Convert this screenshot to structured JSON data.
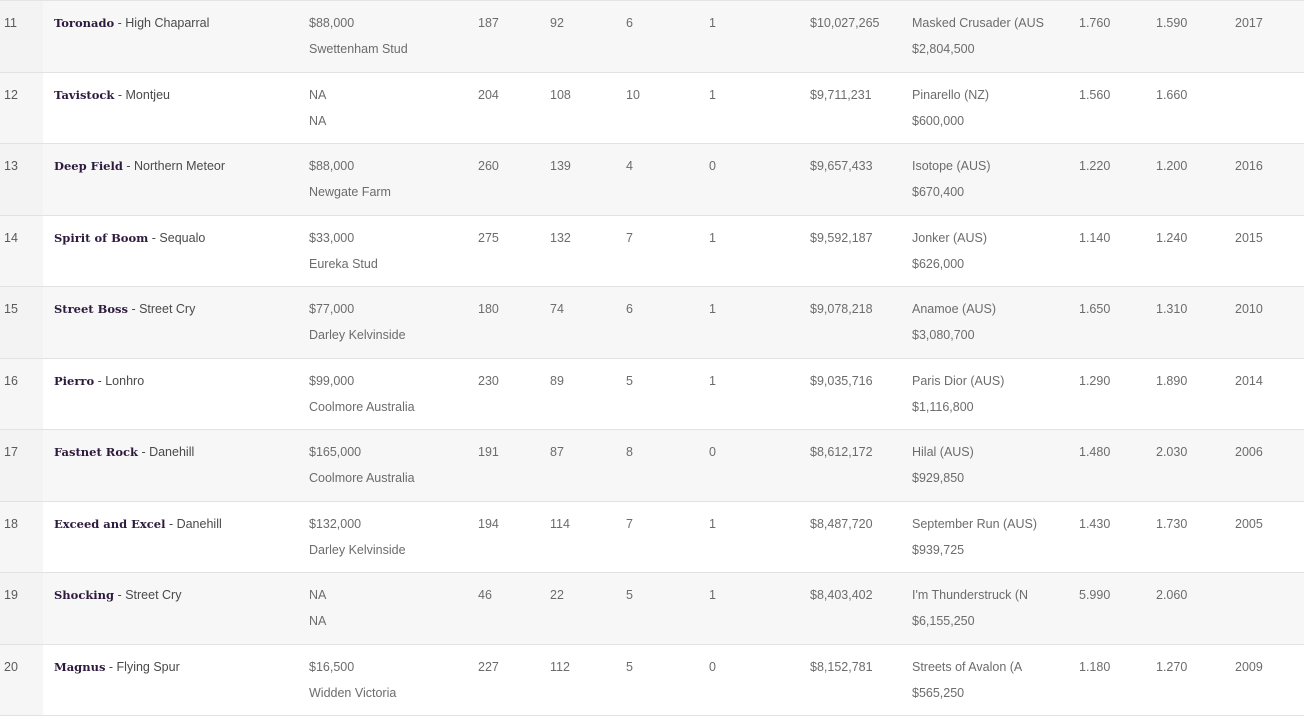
{
  "rows": [
    {
      "rank": "11",
      "sire": "Toronado",
      "sep": " - ",
      "dam_sire": "High Chaparral",
      "fee": "$88,000",
      "stud": "Swettenham Stud",
      "c1": "187",
      "c2": "92",
      "c3": "6",
      "c4": "1",
      "earnings": "$10,027,265",
      "best_horse": "Masked Crusader (AUS",
      "best_prize": "$2,804,500",
      "index1": "1.760",
      "index2": "1.590",
      "year": "2017"
    },
    {
      "rank": "12",
      "sire": "Tavistock",
      "sep": " - ",
      "dam_sire": "Montjeu",
      "fee": "NA",
      "stud": "NA",
      "c1": "204",
      "c2": "108",
      "c3": "10",
      "c4": "1",
      "earnings": "$9,711,231",
      "best_horse": "Pinarello (NZ)",
      "best_prize": "$600,000",
      "index1": "1.560",
      "index2": "1.660",
      "year": ""
    },
    {
      "rank": "13",
      "sire": "Deep Field",
      "sep": " - ",
      "dam_sire": "Northern Meteor",
      "fee": "$88,000",
      "stud": "Newgate Farm",
      "c1": "260",
      "c2": "139",
      "c3": "4",
      "c4": "0",
      "earnings": "$9,657,433",
      "best_horse": "Isotope (AUS)",
      "best_prize": "$670,400",
      "index1": "1.220",
      "index2": "1.200",
      "year": "2016"
    },
    {
      "rank": "14",
      "sire": "Spirit of Boom",
      "sep": " - ",
      "dam_sire": "Sequalo",
      "fee": "$33,000",
      "stud": "Eureka Stud",
      "c1": "275",
      "c2": "132",
      "c3": "7",
      "c4": "1",
      "earnings": "$9,592,187",
      "best_horse": "Jonker (AUS)",
      "best_prize": "$626,000",
      "index1": "1.140",
      "index2": "1.240",
      "year": "2015"
    },
    {
      "rank": "15",
      "sire": "Street Boss",
      "sep": " - ",
      "dam_sire": "Street Cry",
      "fee": "$77,000",
      "stud": "Darley Kelvinside",
      "c1": "180",
      "c2": "74",
      "c3": "6",
      "c4": "1",
      "earnings": "$9,078,218",
      "best_horse": "Anamoe (AUS)",
      "best_prize": "$3,080,700",
      "index1": "1.650",
      "index2": "1.310",
      "year": "2010"
    },
    {
      "rank": "16",
      "sire": "Pierro",
      "sep": " - ",
      "dam_sire": "Lonhro",
      "fee": "$99,000",
      "stud": "Coolmore Australia",
      "c1": "230",
      "c2": "89",
      "c3": "5",
      "c4": "1",
      "earnings": "$9,035,716",
      "best_horse": "Paris Dior (AUS)",
      "best_prize": "$1,116,800",
      "index1": "1.290",
      "index2": "1.890",
      "year": "2014"
    },
    {
      "rank": "17",
      "sire": "Fastnet Rock",
      "sep": " - ",
      "dam_sire": "Danehill",
      "fee": "$165,000",
      "stud": "Coolmore Australia",
      "c1": "191",
      "c2": "87",
      "c3": "8",
      "c4": "0",
      "earnings": "$8,612,172",
      "best_horse": "Hilal (AUS)",
      "best_prize": "$929,850",
      "index1": "1.480",
      "index2": "2.030",
      "year": "2006"
    },
    {
      "rank": "18",
      "sire": "Exceed and Excel",
      "sep": " - ",
      "dam_sire": "Danehill",
      "fee": "$132,000",
      "stud": "Darley Kelvinside",
      "c1": "194",
      "c2": "114",
      "c3": "7",
      "c4": "1",
      "earnings": "$8,487,720",
      "best_horse": "September Run (AUS)",
      "best_prize": "$939,725",
      "index1": "1.430",
      "index2": "1.730",
      "year": "2005"
    },
    {
      "rank": "19",
      "sire": "Shocking",
      "sep": " - ",
      "dam_sire": "Street Cry",
      "fee": "NA",
      "stud": "NA",
      "c1": "46",
      "c2": "22",
      "c3": "5",
      "c4": "1",
      "earnings": "$8,403,402",
      "best_horse": "I'm Thunderstruck (N",
      "best_prize": "$6,155,250",
      "index1": "5.990",
      "index2": "2.060",
      "year": ""
    },
    {
      "rank": "20",
      "sire": "Magnus",
      "sep": " - ",
      "dam_sire": "Flying Spur",
      "fee": "$16,500",
      "stud": "Widden Victoria",
      "c1": "227",
      "c2": "112",
      "c3": "5",
      "c4": "0",
      "earnings": "$8,152,781",
      "best_horse": "Streets of Avalon (A",
      "best_prize": "$565,250",
      "index1": "1.180",
      "index2": "1.270",
      "year": "2009"
    }
  ]
}
